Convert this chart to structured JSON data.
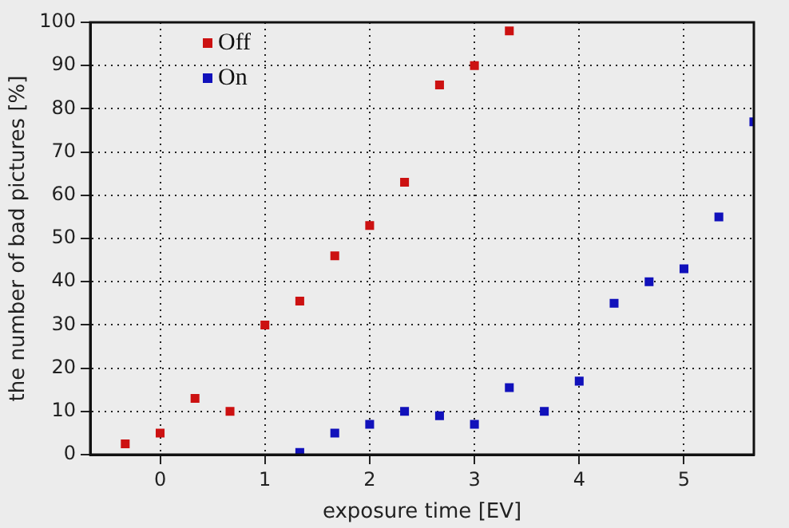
{
  "chart_data": {
    "type": "scatter",
    "xlabel": "exposure time [EV]",
    "ylabel": "the number of bad pictures [%]",
    "xlim": [
      -0.667,
      5.667
    ],
    "ylim": [
      0,
      100
    ],
    "xticks": [
      0,
      1,
      2,
      3,
      4,
      5
    ],
    "yticks": [
      0,
      10,
      20,
      30,
      40,
      50,
      60,
      70,
      80,
      90,
      100
    ],
    "grid": true,
    "line_style": "dotted",
    "legend": "top left",
    "marker": "square",
    "series": [
      {
        "name": "Off",
        "color": "#cc1111",
        "x": [
          -0.333,
          0,
          0.333,
          0.667,
          1,
          1.333,
          1.667,
          2,
          2.333,
          2.667,
          3,
          3.333
        ],
        "values": [
          2.5,
          5,
          13,
          10,
          30,
          35.5,
          46,
          53,
          63,
          85.5,
          90,
          98
        ]
      },
      {
        "name": "On",
        "color": "#1111bb",
        "x": [
          1.333,
          1.667,
          2,
          2.333,
          2.667,
          3,
          3.333,
          3.667,
          4,
          4.333,
          4.667,
          5,
          5.333,
          5.667
        ],
        "values": [
          0.5,
          5,
          7,
          10,
          9,
          7,
          15.5,
          10,
          17,
          35,
          40,
          43,
          55,
          77
        ]
      }
    ]
  }
}
